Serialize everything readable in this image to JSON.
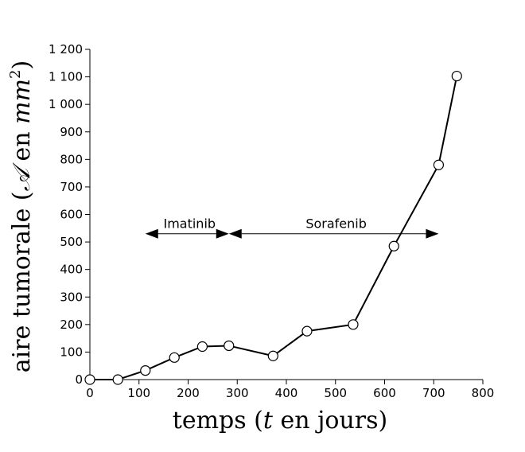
{
  "chart_data": {
    "type": "line",
    "xlabel": "temps (t en jours)",
    "ylabel": "aire tumorale (𝒜 en mm²)",
    "xlim": [
      0,
      800
    ],
    "ylim": [
      0,
      1200
    ],
    "x_ticks": [
      0,
      100,
      200,
      300,
      400,
      500,
      600,
      700,
      800
    ],
    "y_ticks": [
      0,
      100,
      200,
      300,
      400,
      500,
      600,
      700,
      800,
      900,
      1000,
      1100,
      1200
    ],
    "x_tick_labels": [
      "0",
      "100",
      "200",
      "300",
      "400",
      "500",
      "600",
      "700",
      "800"
    ],
    "y_tick_labels": [
      "0",
      "100",
      "200",
      "300",
      "400",
      "500",
      "600",
      "700",
      "800",
      "900",
      "1 000",
      "1 100",
      "1 200"
    ],
    "grid": false,
    "series": [
      {
        "x": [
          0,
          57,
          113,
          172,
          229,
          283,
          373,
          442,
          536,
          619,
          710,
          747
        ],
        "y": [
          0,
          0,
          33,
          80,
          120,
          123,
          86,
          176,
          200,
          485,
          780,
          1103
        ]
      }
    ],
    "annotations": [
      {
        "label": "Imatinib",
        "x_start": 113,
        "x_end": 283,
        "y": 530
      },
      {
        "label": "Sorafenib",
        "x_start": 283,
        "x_end": 710,
        "y": 530
      }
    ]
  }
}
